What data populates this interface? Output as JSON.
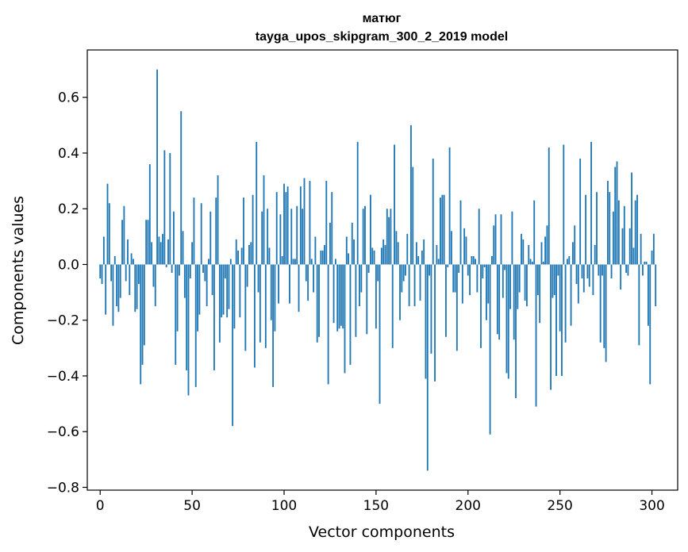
{
  "chart_data": {
    "type": "bar",
    "title": "матюг",
    "subtitle": "tayga_upos_skipgram_300_2_2019 model",
    "xlabel": "Vector components",
    "ylabel": "Components values",
    "xlim": [
      -7,
      314
    ],
    "ylim": [
      -0.81,
      0.77
    ],
    "xticks": [
      0,
      50,
      100,
      150,
      200,
      250,
      300
    ],
    "yticks": [
      -0.8,
      -0.6,
      -0.4,
      -0.2,
      0.0,
      0.2,
      0.4,
      0.6
    ],
    "ytick_labels": [
      "−0.8",
      "−0.6",
      "−0.4",
      "−0.2",
      "0.0",
      "0.2",
      "0.4",
      "0.6"
    ],
    "grid": false,
    "bar_color": "#1f77b4",
    "series": [
      {
        "values": [
          -0.05,
          -0.07,
          0.1,
          -0.18,
          0.29,
          0.22,
          -0.06,
          -0.22,
          0.03,
          -0.15,
          -0.17,
          -0.12,
          0.16,
          0.21,
          -0.06,
          0.09,
          -0.11,
          0.04,
          0.02,
          -0.17,
          -0.16,
          -0.07,
          -0.43,
          -0.36,
          -0.29,
          0.16,
          0.16,
          0.36,
          0.08,
          -0.08,
          -0.15,
          0.7,
          0.1,
          0.08,
          0.11,
          0.41,
          -0.01,
          0.09,
          0.4,
          -0.03,
          0.19,
          -0.36,
          -0.24,
          -0.04,
          0.55,
          0.12,
          -0.12,
          -0.38,
          -0.47,
          -0.05,
          0.08,
          0.24,
          -0.44,
          -0.24,
          -0.18,
          0.22,
          -0.03,
          -0.06,
          -0.15,
          0.02,
          0.19,
          -0.11,
          -0.38,
          0.24,
          0.32,
          -0.28,
          -0.19,
          -0.18,
          -0.05,
          -0.19,
          -0.16,
          0.02,
          -0.58,
          -0.23,
          0.09,
          0.05,
          -0.19,
          0.06,
          0.24,
          -0.31,
          -0.08,
          0.07,
          0.08,
          0.25,
          -0.37,
          0.44,
          -0.1,
          -0.28,
          0.19,
          0.32,
          -0.3,
          0.2,
          0.06,
          -0.2,
          -0.44,
          -0.24,
          0.26,
          -0.14,
          0.18,
          0.03,
          0.29,
          0.26,
          0.28,
          -0.14,
          0.2,
          0.02,
          0.02,
          0.21,
          -0.17,
          0.28,
          0.2,
          0.31,
          -0.06,
          -0.13,
          0.3,
          0.02,
          -0.1,
          0.1,
          -0.28,
          -0.26,
          0.05,
          0.05,
          0.07,
          0.3,
          -0.43,
          0.15,
          0.26,
          -0.21,
          0.02,
          -0.24,
          -0.23,
          -0.22,
          -0.23,
          -0.39,
          0.1,
          0.04,
          -0.36,
          0.15,
          0.09,
          -0.26,
          0.44,
          -0.15,
          -0.1,
          0.2,
          0.21,
          -0.25,
          -0.03,
          0.25,
          0.06,
          0.05,
          -0.23,
          -0.06,
          -0.5,
          0.06,
          0.09,
          0.07,
          0.2,
          0.17,
          0.2,
          -0.3,
          0.43,
          0.12,
          0.08,
          -0.2,
          -0.1,
          -0.06,
          -0.04,
          0.11,
          -0.15,
          0.5,
          0.35,
          -0.15,
          0.08,
          0.03,
          -0.13,
          0.05,
          0.09,
          -0.41,
          -0.74,
          -0.04,
          -0.32,
          0.38,
          -0.42,
          0.07,
          0.02,
          0.24,
          0.25,
          0.25,
          -0.26,
          -0.01,
          0.42,
          0.12,
          -0.1,
          -0.1,
          -0.31,
          -0.03,
          0.23,
          -0.14,
          0.13,
          0.1,
          -0.04,
          -0.11,
          0.03,
          0.03,
          0.02,
          -0.1,
          0.2,
          -0.3,
          -0.05,
          -0.01,
          -0.2,
          -0.14,
          -0.61,
          0.03,
          0.14,
          0.18,
          -0.25,
          -0.27,
          0.18,
          -0.12,
          -0.02,
          -0.39,
          -0.41,
          -0.16,
          0.19,
          -0.27,
          -0.48,
          -0.16,
          -0.1,
          0.11,
          0.09,
          -0.13,
          -0.15,
          0.07,
          0.02,
          0.01,
          0.23,
          -0.51,
          -0.11,
          -0.21,
          0.08,
          0.01,
          0.1,
          0.14,
          0.42,
          -0.45,
          -0.12,
          -0.11,
          -0.4,
          -0.04,
          -0.24,
          -0.4,
          0.43,
          -0.28,
          0.02,
          0.03,
          -0.22,
          0.08,
          0.14,
          -0.07,
          -0.14,
          0.38,
          -0.05,
          -0.1,
          0.25,
          -0.05,
          -0.08,
          0.44,
          -0.11,
          0.07,
          0.26,
          -0.04,
          -0.28,
          -0.04,
          -0.3,
          -0.35,
          0.3,
          0.26,
          -0.05,
          0.19,
          0.35,
          0.37,
          0.23,
          -0.09,
          0.13,
          0.21,
          -0.03,
          -0.04,
          0.13,
          0.33,
          0.06,
          0.23,
          0.25,
          -0.29,
          0.11,
          -0.04,
          0.01,
          0.01,
          -0.22,
          -0.43,
          0.05,
          0.11,
          -0.15
        ]
      }
    ]
  }
}
